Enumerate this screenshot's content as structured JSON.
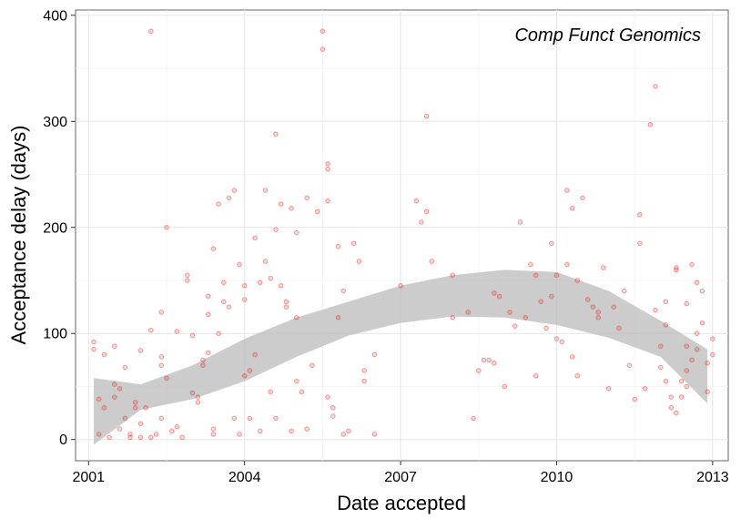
{
  "chart_data": {
    "type": "scatter",
    "title": "",
    "xlabel": "Date accepted",
    "ylabel": "Acceptance delay (days)",
    "annotation": "Comp Funct Genomics",
    "xlim": [
      2000.75,
      2013.3
    ],
    "ylim": [
      -20,
      405
    ],
    "x_ticks": [
      2001,
      2004,
      2007,
      2010,
      2013
    ],
    "x_tick_labels": [
      "2001",
      "2004",
      "2007",
      "2010",
      "2013"
    ],
    "y_ticks": [
      0,
      100,
      200,
      300,
      400
    ],
    "y_tick_labels": [
      "0",
      "100",
      "200",
      "300",
      "400"
    ],
    "grid": true,
    "point_color": "#E41A1C",
    "band_color": "#BBBBBB",
    "points": [
      [
        2001.1,
        92
      ],
      [
        2001.1,
        85
      ],
      [
        2001.2,
        38
      ],
      [
        2001.2,
        5
      ],
      [
        2001.3,
        30
      ],
      [
        2001.3,
        80
      ],
      [
        2001.4,
        2
      ],
      [
        2001.5,
        52
      ],
      [
        2001.5,
        88
      ],
      [
        2001.5,
        40
      ],
      [
        2001.6,
        10
      ],
      [
        2001.6,
        48
      ],
      [
        2001.7,
        68
      ],
      [
        2001.7,
        20
      ],
      [
        2001.8,
        5
      ],
      [
        2001.8,
        2
      ],
      [
        2001.9,
        35
      ],
      [
        2001.9,
        30
      ],
      [
        2002.0,
        84
      ],
      [
        2002.0,
        15
      ],
      [
        2002.0,
        2
      ],
      [
        2002.1,
        30
      ],
      [
        2002.2,
        385
      ],
      [
        2002.2,
        103
      ],
      [
        2002.2,
        2
      ],
      [
        2002.3,
        5
      ],
      [
        2002.4,
        120
      ],
      [
        2002.4,
        78
      ],
      [
        2002.4,
        70
      ],
      [
        2002.4,
        20
      ],
      [
        2002.5,
        200
      ],
      [
        2002.5,
        58
      ],
      [
        2002.6,
        8
      ],
      [
        2002.7,
        12
      ],
      [
        2002.7,
        102
      ],
      [
        2002.8,
        2
      ],
      [
        2002.9,
        155
      ],
      [
        2002.9,
        150
      ],
      [
        2003.0,
        98
      ],
      [
        2003.0,
        44
      ],
      [
        2003.1,
        40
      ],
      [
        2003.1,
        35
      ],
      [
        2003.2,
        75
      ],
      [
        2003.2,
        70
      ],
      [
        2003.3,
        118
      ],
      [
        2003.3,
        135
      ],
      [
        2003.3,
        82
      ],
      [
        2003.4,
        10
      ],
      [
        2003.4,
        5
      ],
      [
        2003.4,
        180
      ],
      [
        2003.5,
        222
      ],
      [
        2003.5,
        100
      ],
      [
        2003.6,
        130
      ],
      [
        2003.6,
        148
      ],
      [
        2003.7,
        228
      ],
      [
        2003.7,
        125
      ],
      [
        2003.8,
        235
      ],
      [
        2003.8,
        20
      ],
      [
        2003.9,
        165
      ],
      [
        2003.9,
        5
      ],
      [
        2004.0,
        132
      ],
      [
        2004.0,
        145
      ],
      [
        2004.0,
        60
      ],
      [
        2004.1,
        65
      ],
      [
        2004.1,
        20
      ],
      [
        2004.2,
        80
      ],
      [
        2004.2,
        190
      ],
      [
        2004.3,
        8
      ],
      [
        2004.3,
        148
      ],
      [
        2004.4,
        235
      ],
      [
        2004.4,
        168
      ],
      [
        2004.5,
        152
      ],
      [
        2004.5,
        45
      ],
      [
        2004.6,
        288
      ],
      [
        2004.6,
        198
      ],
      [
        2004.6,
        20
      ],
      [
        2004.7,
        222
      ],
      [
        2004.7,
        145
      ],
      [
        2004.8,
        130
      ],
      [
        2004.8,
        125
      ],
      [
        2004.9,
        218
      ],
      [
        2004.9,
        8
      ],
      [
        2005.0,
        115
      ],
      [
        2005.0,
        195
      ],
      [
        2005.0,
        55
      ],
      [
        2005.1,
        45
      ],
      [
        2005.2,
        228
      ],
      [
        2005.2,
        10
      ],
      [
        2005.3,
        70
      ],
      [
        2005.4,
        215
      ],
      [
        2005.5,
        385
      ],
      [
        2005.5,
        368
      ],
      [
        2005.6,
        260
      ],
      [
        2005.6,
        255
      ],
      [
        2005.6,
        225
      ],
      [
        2005.6,
        40
      ],
      [
        2005.7,
        30
      ],
      [
        2005.7,
        22
      ],
      [
        2005.8,
        182
      ],
      [
        2005.8,
        115
      ],
      [
        2005.9,
        140
      ],
      [
        2005.9,
        5
      ],
      [
        2006.0,
        8
      ],
      [
        2006.1,
        185
      ],
      [
        2006.2,
        168
      ],
      [
        2006.3,
        55
      ],
      [
        2006.3,
        65
      ],
      [
        2006.5,
        80
      ],
      [
        2006.5,
        5
      ],
      [
        2007.0,
        145
      ],
      [
        2007.3,
        225
      ],
      [
        2007.4,
        205
      ],
      [
        2007.5,
        305
      ],
      [
        2007.5,
        215
      ],
      [
        2007.6,
        168
      ],
      [
        2008.0,
        155
      ],
      [
        2008.0,
        115
      ],
      [
        2008.3,
        120
      ],
      [
        2008.4,
        20
      ],
      [
        2008.5,
        65
      ],
      [
        2008.6,
        75
      ],
      [
        2008.7,
        75
      ],
      [
        2008.8,
        72
      ],
      [
        2008.8,
        138
      ],
      [
        2008.9,
        135
      ],
      [
        2009.0,
        50
      ],
      [
        2009.1,
        120
      ],
      [
        2009.2,
        107
      ],
      [
        2009.3,
        205
      ],
      [
        2009.4,
        115
      ],
      [
        2009.5,
        165
      ],
      [
        2009.6,
        155
      ],
      [
        2009.6,
        60
      ],
      [
        2009.7,
        130
      ],
      [
        2009.8,
        105
      ],
      [
        2009.9,
        185
      ],
      [
        2009.9,
        135
      ],
      [
        2010.0,
        155
      ],
      [
        2010.0,
        95
      ],
      [
        2010.1,
        92
      ],
      [
        2010.2,
        235
      ],
      [
        2010.2,
        165
      ],
      [
        2010.3,
        218
      ],
      [
        2010.3,
        78
      ],
      [
        2010.4,
        150
      ],
      [
        2010.4,
        60
      ],
      [
        2010.5,
        228
      ],
      [
        2010.6,
        132
      ],
      [
        2010.7,
        125
      ],
      [
        2010.8,
        120
      ],
      [
        2010.8,
        115
      ],
      [
        2010.9,
        162
      ],
      [
        2011.0,
        48
      ],
      [
        2011.1,
        125
      ],
      [
        2011.2,
        105
      ],
      [
        2011.3,
        140
      ],
      [
        2011.4,
        70
      ],
      [
        2011.5,
        38
      ],
      [
        2011.6,
        212
      ],
      [
        2011.6,
        185
      ],
      [
        2011.7,
        48
      ],
      [
        2011.8,
        297
      ],
      [
        2011.9,
        333
      ],
      [
        2011.9,
        122
      ],
      [
        2012.0,
        88
      ],
      [
        2012.0,
        68
      ],
      [
        2012.1,
        130
      ],
      [
        2012.1,
        108
      ],
      [
        2012.2,
        40
      ],
      [
        2012.3,
        162
      ],
      [
        2012.3,
        160
      ],
      [
        2012.4,
        40
      ],
      [
        2012.5,
        128
      ],
      [
        2012.5,
        88
      ],
      [
        2012.6,
        165
      ],
      [
        2012.7,
        148
      ],
      [
        2012.7,
        100
      ],
      [
        2012.8,
        140
      ],
      [
        2012.8,
        110
      ],
      [
        2012.9,
        72
      ],
      [
        2012.9,
        45
      ],
      [
        2013.0,
        80
      ],
      [
        2013.0,
        95
      ],
      [
        2012.4,
        55
      ],
      [
        2012.5,
        65
      ],
      [
        2012.6,
        75
      ],
      [
        2012.2,
        30
      ],
      [
        2012.3,
        25
      ],
      [
        2012.5,
        50
      ],
      [
        2012.7,
        85
      ],
      [
        2012.1,
        55
      ]
    ],
    "smooth_band": {
      "x": [
        2001.1,
        2002.0,
        2003.0,
        2004.0,
        2005.0,
        2006.0,
        2007.0,
        2008.0,
        2009.0,
        2010.0,
        2011.0,
        2012.0,
        2012.9
      ],
      "lower": [
        -5,
        28,
        38,
        55,
        78,
        98,
        110,
        116,
        115,
        108,
        96,
        78,
        34
      ],
      "upper": [
        58,
        52,
        70,
        95,
        115,
        130,
        145,
        155,
        160,
        158,
        140,
        112,
        85
      ]
    }
  }
}
